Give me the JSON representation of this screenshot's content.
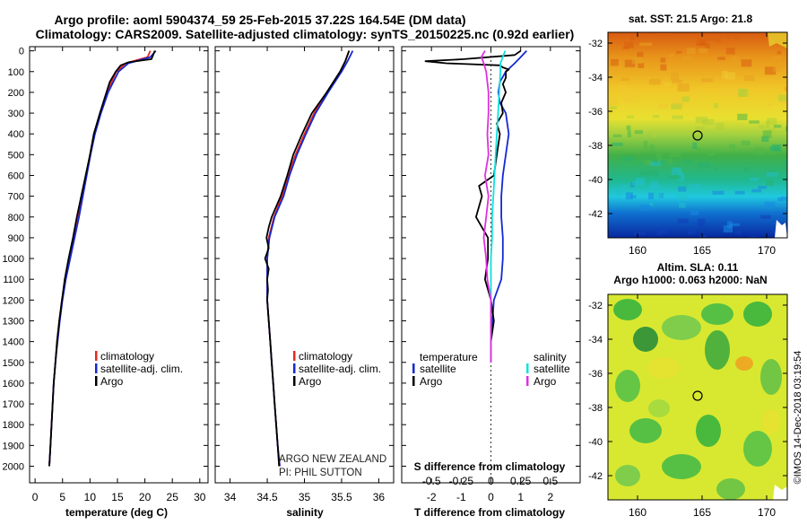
{
  "header": {
    "title_line1": "Argo profile: aoml 5904374_59 25-Feb-2015 37.22S 164.54E (DM data)",
    "title_line2": "Climatology: CARS2009. Satellite-adjusted climatology: synTS_20150225.nc (0.92d earlier)"
  },
  "colors": {
    "climatology": "#e8281e",
    "satellite": "#1428d2",
    "argo": "#000000",
    "salinity_satellite": "#10e0e0",
    "salinity_argo": "#e030e0"
  },
  "legend": {
    "climatology": "climatology",
    "satellite": "satellite-adj. clim.",
    "argo": "Argo",
    "diff_temperature": "temperature",
    "diff_salinity": "salinity",
    "diff_satellite": "satellite",
    "diff_argo": "Argo"
  },
  "annotation": {
    "line1": "ARGO NEW ZEALAND",
    "line2": "PI: PHIL SUTTON"
  },
  "maps": {
    "sst_title": "sat. SST: 21.5 Argo: 21.8",
    "sla_title_line1": "Altim. SLA: 0.11",
    "sla_title_line2": "Argo h1000: 0.063 h2000: NaN",
    "lat_ticks": [
      "-32",
      "-34",
      "-36",
      "-38",
      "-40",
      "-42"
    ],
    "lon_ticks": [
      "160",
      "165",
      "170"
    ],
    "float_position": {
      "lon": 164.54,
      "lat": -37.22
    }
  },
  "credit": "©IMOS 14-Dec-2018 03:19:54",
  "chart_data": [
    {
      "type": "line",
      "xlabel": "temperature (deg C)",
      "ylabel": "",
      "xlim": [
        -1,
        31.5
      ],
      "ylim": [
        2080,
        -20
      ],
      "xticks": [
        "0",
        "5",
        "10",
        "15",
        "20",
        "25",
        "30"
      ],
      "yticks": [
        "0",
        "100",
        "200",
        "300",
        "400",
        "500",
        "600",
        "700",
        "800",
        "900",
        "1000",
        "1100",
        "1200",
        "1300",
        "1400",
        "1500",
        "1600",
        "1700",
        "1800",
        "1900",
        "2000"
      ],
      "series": [
        {
          "name": "climatology",
          "depth": [
            0,
            30,
            60,
            100,
            200,
            300,
            400,
            500,
            600,
            700,
            800,
            900,
            1000,
            1100,
            1200,
            1300,
            1400,
            1500,
            1600,
            1700,
            1800,
            1900,
            2000
          ],
          "values": [
            21.0,
            20.5,
            16.5,
            14.8,
            13.1,
            11.9,
            10.8,
            10.0,
            9.3,
            8.6,
            7.9,
            7.1,
            6.3,
            5.5,
            4.9,
            4.4,
            4.0,
            3.7,
            3.4,
            3.2,
            3.0,
            2.8,
            2.6
          ]
        },
        {
          "name": "satellite-adj. clim.",
          "depth": [
            0,
            30,
            60,
            100,
            200,
            300,
            400,
            500,
            600,
            700,
            800,
            900,
            1000,
            1100,
            1200,
            1300,
            1400,
            1500,
            1600,
            1700,
            1800,
            1900,
            2000
          ],
          "values": [
            22.0,
            21.0,
            17.0,
            15.2,
            13.3,
            12.0,
            10.9,
            10.1,
            9.4,
            8.7,
            8.0,
            7.2,
            6.4,
            5.6,
            5.0,
            4.5,
            4.1,
            3.7,
            3.4,
            3.2,
            3.0,
            2.8,
            2.6
          ]
        },
        {
          "name": "Argo",
          "depth": [
            0,
            20,
            40,
            55,
            70,
            100,
            150,
            200,
            300,
            400,
            500,
            600,
            700,
            800,
            900,
            1000,
            1100,
            1200,
            1300,
            1400,
            1500,
            1600,
            1700,
            1800,
            1900,
            2000
          ],
          "values": [
            21.8,
            21.5,
            21.2,
            17.0,
            15.6,
            14.7,
            13.6,
            13.0,
            11.8,
            10.7,
            10.0,
            9.2,
            8.4,
            7.6,
            6.9,
            6.1,
            5.4,
            4.9,
            4.4,
            4.0,
            3.7,
            3.4,
            3.2,
            3.0,
            2.8,
            2.6
          ]
        }
      ]
    },
    {
      "type": "line",
      "xlabel": "salinity",
      "ylabel": "",
      "xlim": [
        33.8,
        36.2
      ],
      "ylim": [
        2080,
        -20
      ],
      "xticks": [
        "34",
        "34.5",
        "35",
        "35.5",
        "36"
      ],
      "series": [
        {
          "name": "climatology",
          "depth": [
            0,
            50,
            100,
            200,
            300,
            400,
            500,
            600,
            700,
            800,
            900,
            1000,
            1100,
            1200,
            1300,
            1400,
            1500,
            1600,
            1700,
            1800,
            1900,
            2000
          ],
          "values": [
            35.6,
            35.55,
            35.48,
            35.3,
            35.13,
            35.0,
            34.88,
            34.78,
            34.7,
            34.59,
            34.52,
            34.5,
            34.5,
            34.5,
            34.52,
            34.54,
            34.56,
            34.58,
            34.6,
            34.62,
            34.64,
            34.66
          ]
        },
        {
          "name": "satellite-adj. clim.",
          "depth": [
            0,
            50,
            100,
            200,
            300,
            400,
            500,
            600,
            700,
            800,
            900,
            1000,
            1100,
            1200,
            1300,
            1400,
            1500,
            1600,
            1700,
            1800,
            1900,
            2000
          ],
          "values": [
            35.65,
            35.58,
            35.5,
            35.32,
            35.15,
            35.02,
            34.9,
            34.8,
            34.72,
            34.6,
            34.53,
            34.5,
            34.5,
            34.5,
            34.52,
            34.54,
            34.56,
            34.58,
            34.6,
            34.62,
            34.64,
            34.67
          ]
        },
        {
          "name": "Argo",
          "depth": [
            0,
            50,
            100,
            200,
            300,
            400,
            500,
            600,
            700,
            800,
            850,
            900,
            950,
            1000,
            1050,
            1100,
            1150,
            1200,
            1300,
            1400,
            1500,
            1600,
            1700,
            1800,
            1900,
            2000
          ],
          "values": [
            35.6,
            35.55,
            35.48,
            35.3,
            35.1,
            34.97,
            34.85,
            34.77,
            34.68,
            34.56,
            34.52,
            34.49,
            34.52,
            34.47,
            34.52,
            34.5,
            34.51,
            34.5,
            34.52,
            34.54,
            34.56,
            34.58,
            34.6,
            34.62,
            34.64,
            34.66
          ]
        }
      ]
    },
    {
      "type": "line",
      "xlabel": "T difference from climatology",
      "xlabel_top": "S difference from climatology",
      "ylabel": "",
      "xlim": [
        -3,
        3
      ],
      "xticks": [
        "-2",
        "-1",
        "0",
        "1",
        "2"
      ],
      "top_xticks": [
        "-0.5",
        "-0.25",
        "0",
        "0.25",
        "0.5"
      ],
      "ylim": [
        2080,
        -20
      ],
      "series": [
        {
          "name": "temperature satellite",
          "depth": [
            0,
            30,
            60,
            100,
            150,
            200,
            250,
            300,
            400,
            500,
            600,
            700,
            800,
            900,
            1000,
            1100,
            1200,
            1300,
            1400,
            1500
          ],
          "values": [
            1.2,
            1.0,
            0.8,
            0.5,
            0.3,
            0.25,
            0.3,
            0.5,
            0.6,
            0.5,
            0.4,
            0.35,
            0.35,
            0.4,
            0.4,
            0.35,
            0.1,
            0.05,
            0.0,
            0.0
          ]
        },
        {
          "name": "temperature Argo",
          "depth": [
            0,
            20,
            40,
            50,
            60,
            70,
            80,
            90,
            100,
            130,
            160,
            200,
            250,
            300,
            350,
            400,
            450,
            500,
            600,
            650,
            700,
            750,
            800,
            850,
            900,
            1000,
            1100,
            1200,
            1300,
            1400,
            1500
          ],
          "values": [
            1.0,
            0.8,
            -0.9,
            -2.2,
            -1.5,
            0.3,
            0.4,
            0.6,
            0.5,
            0.5,
            0.4,
            0.5,
            0.35,
            0.4,
            0.2,
            0.3,
            0.25,
            0.2,
            0.1,
            -0.4,
            -0.3,
            -0.4,
            -0.5,
            -0.3,
            -0.1,
            -0.1,
            -0.2,
            0.0,
            0.1,
            0.0,
            0.0
          ]
        },
        {
          "name": "salinity satellite",
          "depth": [
            0,
            30,
            60,
            100,
            200,
            300,
            400,
            500,
            600,
            700,
            800,
            900,
            1000,
            1100,
            1200,
            1300,
            1400,
            1500
          ],
          "values": [
            0.12,
            0.1,
            0.08,
            0.08,
            0.07,
            0.06,
            0.05,
            0.04,
            0.03,
            0.02,
            0.01,
            0.01,
            0.0,
            0.0,
            0.0,
            0.0,
            0.0,
            0.0
          ]
        },
        {
          "name": "salinity Argo",
          "depth": [
            0,
            30,
            60,
            100,
            200,
            300,
            400,
            500,
            600,
            700,
            800,
            900,
            1000,
            1100,
            1200,
            1300,
            1400,
            1500
          ],
          "values": [
            -0.05,
            -0.08,
            -0.06,
            -0.04,
            -0.02,
            -0.02,
            -0.03,
            -0.02,
            -0.05,
            -0.02,
            -0.04,
            -0.06,
            -0.04,
            -0.03,
            0.0,
            0.0,
            0.0,
            0.0
          ]
        }
      ]
    }
  ]
}
